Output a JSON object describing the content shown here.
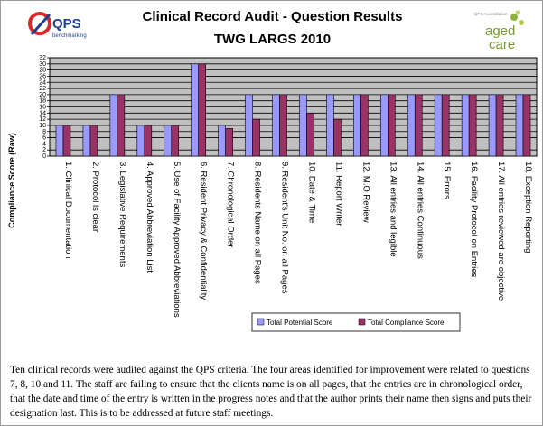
{
  "header": {
    "title": "Clinical Record Audit - Question Results",
    "subtitle": "TWG LARGS 2010"
  },
  "logos": {
    "qps_text": "QPS",
    "qps_tagline": "benchmarking",
    "aged_care_text_1": "aged",
    "aged_care_text_2": "care",
    "aged_care_tagline": "QPS Accreditation"
  },
  "caption": "Ten clinical records were audited against the QPS criteria. The four areas identified for improvement were related to questions 7, 8, 10 and 11. The staff are failing to ensure that the clients name is on all pages, that the entries are in chronological order, that the date and time of the entry is written in the progress notes and that the author prints their name then signs and puts their designation last. This is to be addressed at future staff meetings.",
  "colors": {
    "potential": "#9999ff",
    "compliance": "#993366",
    "plot_bg": "#c0c0c0"
  },
  "chart_data": {
    "type": "bar",
    "title": "Clinical Record Audit - Question Results",
    "ylabel": "Compliance Score (Raw)",
    "xlabel": "",
    "ylim": [
      0,
      32
    ],
    "yticks": [
      0,
      2,
      4,
      6,
      8,
      10,
      12,
      14,
      16,
      18,
      20,
      22,
      24,
      26,
      28,
      30,
      32
    ],
    "grid": true,
    "legend_position": "bottom-right",
    "categories": [
      "1. Clinical Documentation",
      "2. Protocol is clear",
      "3. Legislative Requirements",
      "4. Approved Abbreviation List",
      "5. Use of Facility Approved Abbreviations",
      "6. Resident Privacy & Confidentiality",
      "7. Chronological Order",
      "8. Residents Name on all Pages",
      "9. Resident's Unit No. on all Pages",
      "10. Date & Time",
      "11. Report Writer",
      "12. M.O Review",
      "13. All entries and legible",
      "14. All entries Continuous",
      "15. Errors",
      "16. Facility Protocol on Entries",
      "17. All entries reviewed are objective",
      "18. Exception Reporting"
    ],
    "series": [
      {
        "name": "Total Potential Score",
        "values": [
          10,
          10,
          20,
          10,
          10,
          30,
          10,
          20,
          20,
          20,
          20,
          20,
          20,
          20,
          20,
          20,
          20,
          20
        ]
      },
      {
        "name": "Total Compliance Score",
        "values": [
          10,
          10,
          20,
          10,
          10,
          30,
          9,
          12,
          20,
          14,
          12,
          20,
          20,
          20,
          20,
          20,
          20,
          20
        ]
      }
    ]
  }
}
